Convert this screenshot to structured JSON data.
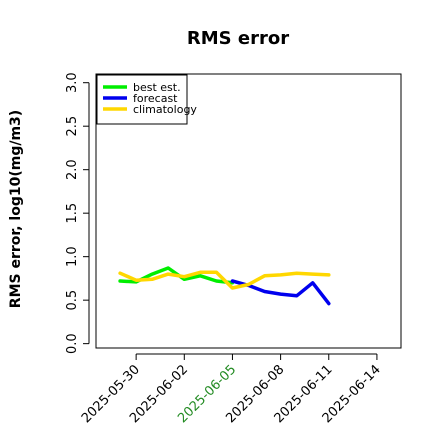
{
  "chart_data": {
    "type": "line",
    "title": "RMS error",
    "xlabel": "",
    "ylabel": "RMS error, log10(mg/m3)",
    "ylim": [
      -0.05,
      3.1
    ],
    "yticks": [
      "0.0",
      "0.5",
      "1.0",
      "1.5",
      "2.0",
      "2.5",
      "3.0"
    ],
    "xticks": [
      {
        "date": "2025-05-30",
        "label": "2025-05-30",
        "color": "#000000"
      },
      {
        "date": "2025-06-02",
        "label": "2025-06-02",
        "color": "#000000"
      },
      {
        "date": "2025-06-05",
        "label": "2025-06-05",
        "color": "#228B22"
      },
      {
        "date": "2025-06-08",
        "label": "2025-06-08",
        "color": "#000000"
      },
      {
        "date": "2025-06-11",
        "label": "2025-06-11",
        "color": "#000000"
      },
      {
        "date": "2025-06-14",
        "label": "2025-06-14",
        "color": "#000000"
      }
    ],
    "xlim": [
      "2025-05-27T12:00",
      "2025-06-15T12:00"
    ],
    "legend_position": "top-left",
    "series": [
      {
        "name": "best est.",
        "color": "#00EE00",
        "points": [
          [
            "2025-05-29",
            0.72
          ],
          [
            "2025-05-30",
            0.71
          ],
          [
            "2025-05-31",
            0.8
          ],
          [
            "2025-06-01",
            0.87
          ],
          [
            "2025-06-02",
            0.74
          ],
          [
            "2025-06-03",
            0.78
          ],
          [
            "2025-06-04",
            0.72
          ],
          [
            "2025-06-05",
            0.7
          ]
        ]
      },
      {
        "name": "forecast",
        "color": "#0000EE",
        "points": [
          [
            "2025-06-05",
            0.72
          ],
          [
            "2025-06-06",
            0.67
          ],
          [
            "2025-06-07",
            0.6
          ],
          [
            "2025-06-08",
            0.57
          ],
          [
            "2025-06-09",
            0.55
          ],
          [
            "2025-06-10",
            0.7
          ],
          [
            "2025-06-11",
            0.46
          ]
        ]
      },
      {
        "name": "climatology",
        "color": "#FFD700",
        "points": [
          [
            "2025-05-29",
            0.81
          ],
          [
            "2025-05-30",
            0.73
          ],
          [
            "2025-05-31",
            0.74
          ],
          [
            "2025-06-01",
            0.8
          ],
          [
            "2025-06-02",
            0.77
          ],
          [
            "2025-06-03",
            0.82
          ],
          [
            "2025-06-04",
            0.82
          ],
          [
            "2025-06-05",
            0.64
          ],
          [
            "2025-06-06",
            0.68
          ],
          [
            "2025-06-07",
            0.78
          ],
          [
            "2025-06-08",
            0.79
          ],
          [
            "2025-06-09",
            0.81
          ],
          [
            "2025-06-10",
            0.8
          ],
          [
            "2025-06-11",
            0.79
          ]
        ]
      }
    ],
    "grid": false
  }
}
